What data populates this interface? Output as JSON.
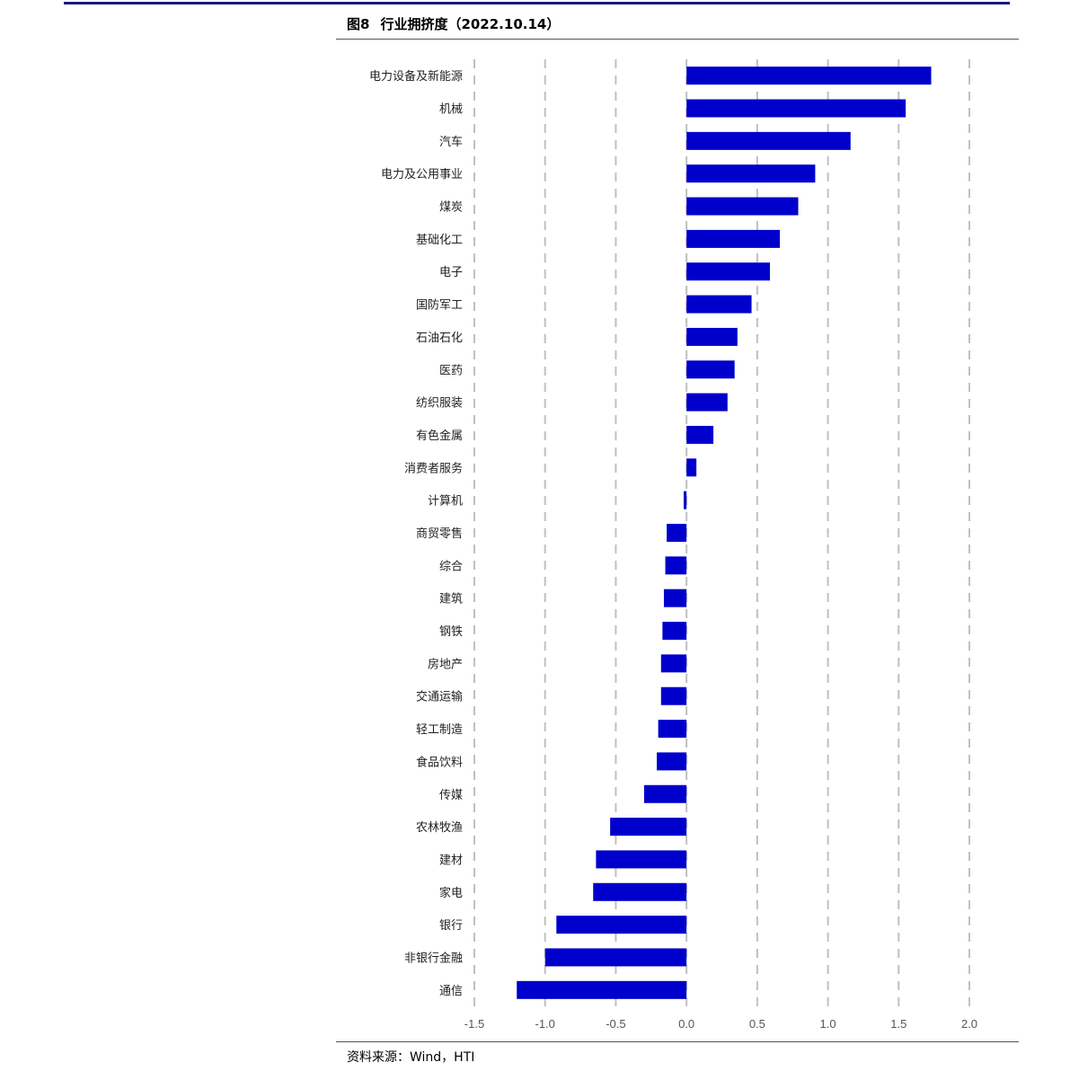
{
  "figure": {
    "number": "图8",
    "title": "行业拥挤度（2022.10.14）",
    "source": "资料来源：Wind，HTI"
  },
  "colors": {
    "bar": "#0000cc",
    "grid": "#c0c0c0",
    "rule": "#1a1a80"
  },
  "chart_data": {
    "type": "bar",
    "orientation": "horizontal",
    "title": "行业拥挤度（2022.10.14）",
    "xlabel": "",
    "ylabel": "",
    "xlim": [
      -1.5,
      2.0
    ],
    "xticks": [
      "-1.5",
      "-1.0",
      "-0.5",
      "0.0",
      "0.5",
      "1.0",
      "1.5",
      "2.0"
    ],
    "grid": "vertical dashed",
    "legend": "none",
    "categories": [
      "电力设备及新能源",
      "机械",
      "汽车",
      "电力及公用事业",
      "煤炭",
      "基础化工",
      "电子",
      "国防军工",
      "石油石化",
      "医药",
      "纺织服装",
      "有色金属",
      "消费者服务",
      "计算机",
      "商贸零售",
      "综合",
      "建筑",
      "钢铁",
      "房地产",
      "交通运输",
      "轻工制造",
      "食品饮料",
      "传媒",
      "农林牧渔",
      "建材",
      "家电",
      "银行",
      "非银行金融",
      "通信"
    ],
    "values": [
      1.73,
      1.55,
      1.16,
      0.91,
      0.79,
      0.66,
      0.59,
      0.46,
      0.36,
      0.34,
      0.29,
      0.19,
      0.07,
      -0.02,
      -0.14,
      -0.15,
      -0.16,
      -0.17,
      -0.18,
      -0.18,
      -0.2,
      -0.21,
      -0.3,
      -0.54,
      -0.64,
      -0.66,
      -0.92,
      -1.0,
      -1.2
    ]
  }
}
